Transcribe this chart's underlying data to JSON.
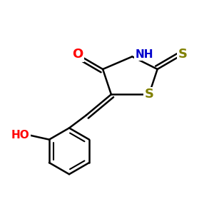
{
  "bg_color": "#ffffff",
  "atom_colors": {
    "O": "#ff0000",
    "N": "#0000cd",
    "S": "#808000",
    "Ho": "#ff0000"
  },
  "bond_width": 1.8,
  "font_size": 11
}
